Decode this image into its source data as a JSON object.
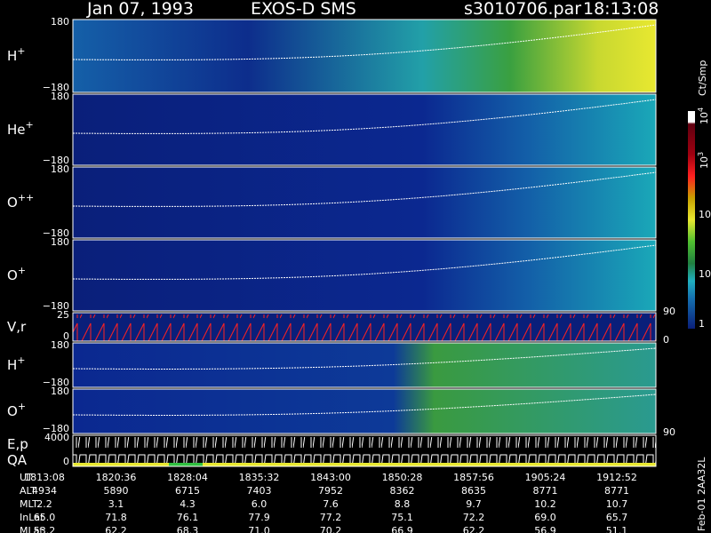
{
  "header": {
    "date": "Jan 07, 1993",
    "instrument": "EXOS-D SMS",
    "file": "s3010706.par",
    "time": "18:13:08"
  },
  "panels": [
    {
      "label": "H",
      "superscript": "+",
      "ticks": [
        "180",
        "−180"
      ]
    },
    {
      "label": "He",
      "superscript": "+",
      "ticks": [
        "180",
        "−180"
      ]
    },
    {
      "label": "O",
      "superscript": "++",
      "ticks": [
        "180",
        "−180"
      ]
    },
    {
      "label": "O",
      "superscript": "+",
      "ticks": [
        "180",
        "−180"
      ]
    },
    {
      "label": "V,r",
      "ticks": [
        "25",
        "0"
      ],
      "right_ticks": [
        "90",
        "0"
      ]
    },
    {
      "label": "H",
      "superscript": "+",
      "ticks": [
        "180",
        "−180"
      ]
    },
    {
      "label": "O",
      "superscript": "+",
      "ticks": [
        "180",
        "−180"
      ],
      "right_ticks": [
        "90"
      ]
    },
    {
      "label": "E,p",
      "label2": "QA",
      "ticks": [
        "4000",
        "0"
      ]
    }
  ],
  "colorbar": {
    "unit": "Ct/Smp",
    "labels": [
      {
        "base": "10",
        "exp": "4"
      },
      {
        "base": "10",
        "exp": "3"
      },
      {
        "base": "100"
      },
      {
        "base": "10"
      },
      {
        "base": "1"
      }
    ]
  },
  "table": {
    "rows": [
      [
        "UT",
        "1813:08",
        "1820:36",
        "1828:04",
        "1835:32",
        "1843:00",
        "1850:28",
        "1857:56",
        "1905:24",
        "1912:52"
      ],
      [
        "ALT",
        "4934",
        "5890",
        "6715",
        "7403",
        "7952",
        "8362",
        "8635",
        "8771",
        "8771"
      ],
      [
        "MLT",
        "2.2",
        "3.1",
        "4.3",
        "6.0",
        "7.6",
        "8.8",
        "9.7",
        "10.2",
        "10.7"
      ],
      [
        "InLat",
        "65.0",
        "71.8",
        "76.1",
        "77.9",
        "77.2",
        "75.1",
        "72.2",
        "69.0",
        "65.7"
      ],
      [
        "MLat",
        "53.2",
        "62.2",
        "68.3",
        "71.0",
        "70.2",
        "66.9",
        "62.2",
        "56.9",
        "51.1"
      ]
    ]
  },
  "footer": "Feb-01 2AA32L"
}
